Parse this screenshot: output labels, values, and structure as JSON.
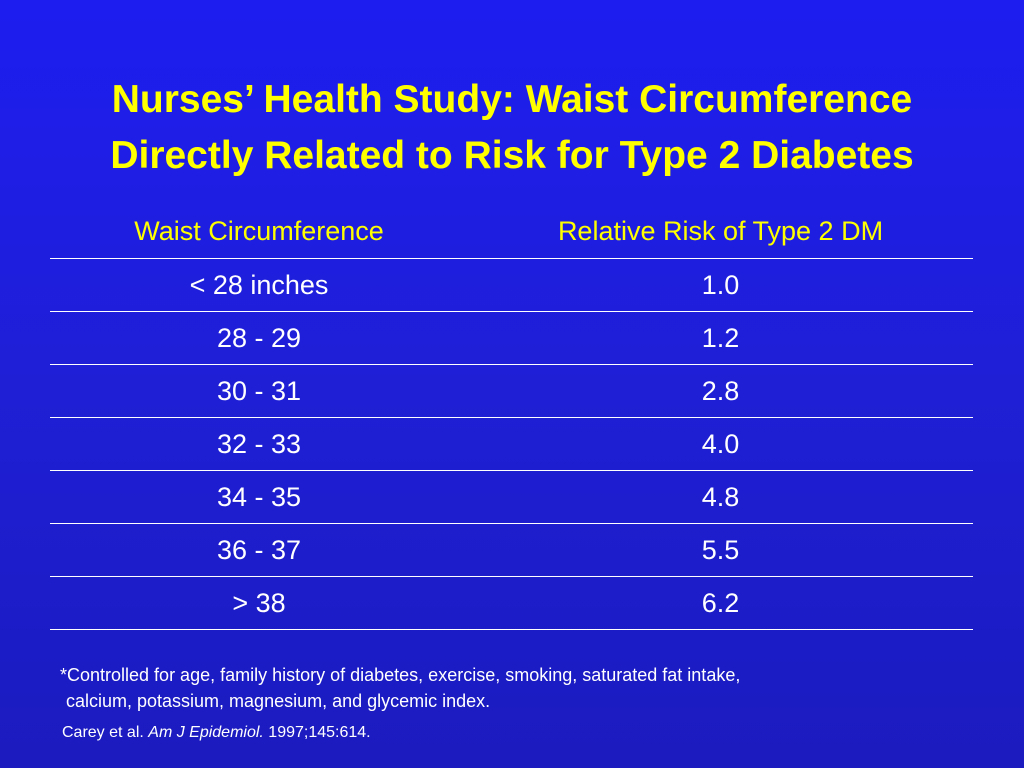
{
  "title": {
    "line1": "Nurses’ Health Study: Waist Circumference",
    "line2": "Directly Related to Risk for Type 2 Diabetes"
  },
  "table": {
    "headers": [
      "Waist Circumference",
      "Relative Risk of Type 2 DM"
    ],
    "rows": [
      [
        "< 28 inches",
        "1.0"
      ],
      [
        "28 - 29",
        "1.2"
      ],
      [
        "30 - 31",
        "2.8"
      ],
      [
        "32 - 33",
        "4.0"
      ],
      [
        "34 - 35",
        "4.8"
      ],
      [
        "36 - 37",
        "5.5"
      ],
      [
        "> 38",
        "6.2"
      ]
    ]
  },
  "footnote": {
    "line1": "*Controlled for age, family history of diabetes, exercise, smoking, saturated fat intake,",
    "line2": "calcium, potassium, magnesium, and glycemic index."
  },
  "citation": {
    "authors": "Carey et al. ",
    "journal": "Am J Epidemiol.",
    "details": " 1997;145:614."
  },
  "colors": {
    "background": "#1f1fd6",
    "title": "#ffff00",
    "header": "#ffff00",
    "text": "#ffffff"
  }
}
